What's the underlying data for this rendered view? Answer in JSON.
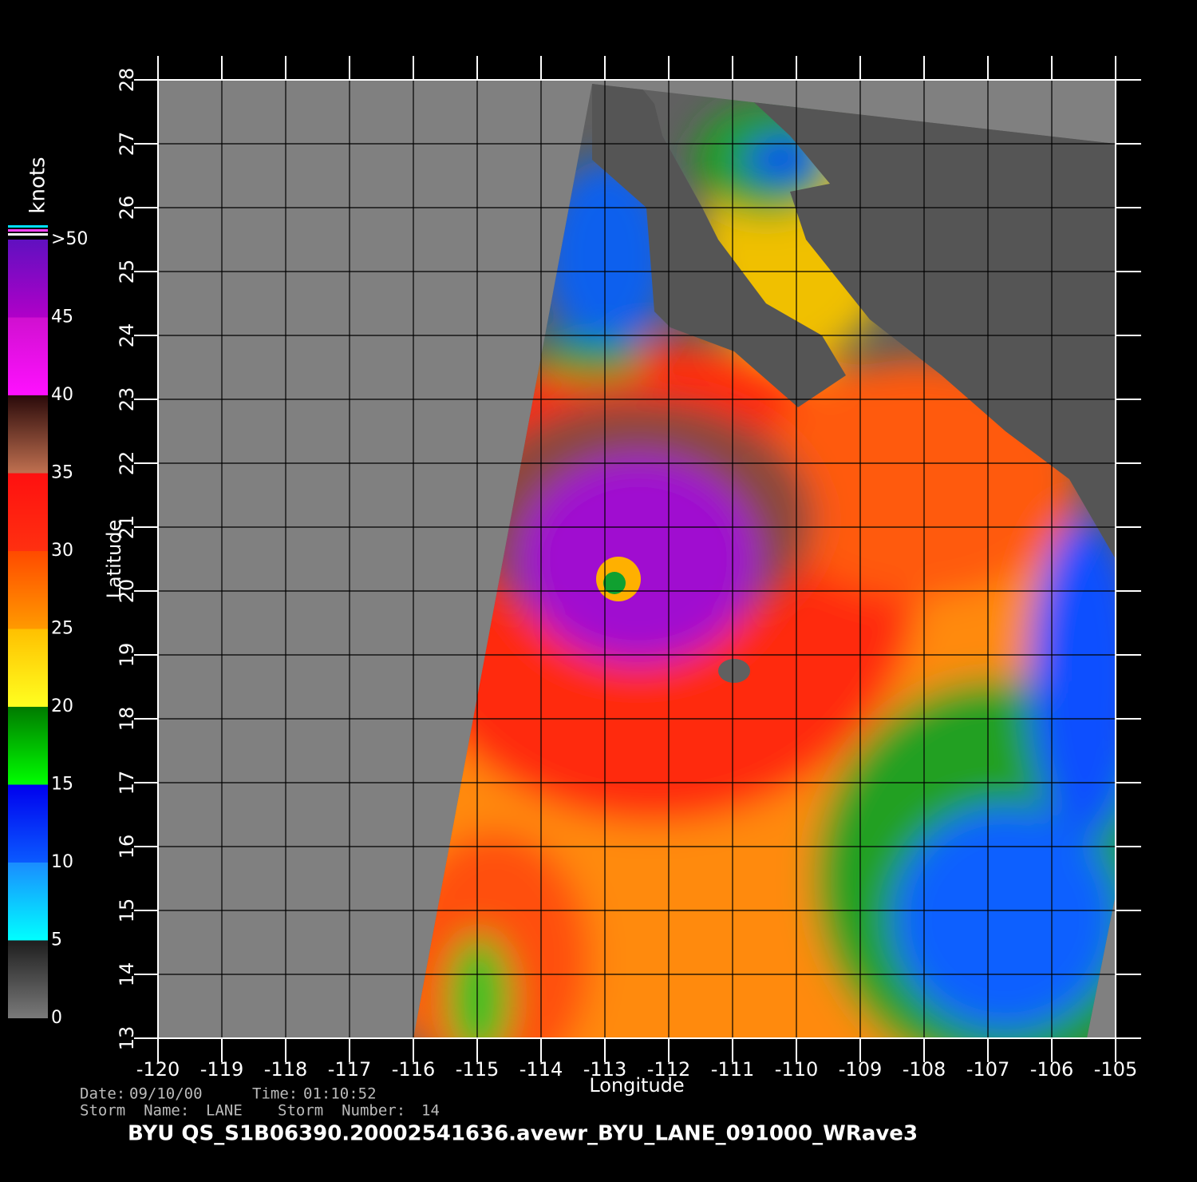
{
  "map": {
    "xlabel": "Longitude",
    "ylabel": "Latitude",
    "xlim": [
      -120,
      -105
    ],
    "ylim": [
      13,
      28
    ],
    "xticks": [
      -120,
      -119,
      -118,
      -117,
      -116,
      -115,
      -114,
      -113,
      -112,
      -111,
      -110,
      -109,
      -108,
      -107,
      -106,
      -105
    ],
    "yticks": [
      13,
      14,
      15,
      16,
      17,
      18,
      19,
      20,
      21,
      22,
      23,
      24,
      25,
      26,
      27,
      28
    ],
    "grid": true
  },
  "colorbar": {
    "title": "knots",
    "ticks": [
      0,
      5,
      10,
      15,
      20,
      25,
      30,
      35,
      40,
      45,
      {
        "value": 50,
        "label": ">50"
      }
    ],
    "colors": [
      [
        "#7a7a7a",
        "#1e1e1e"
      ],
      [
        "#00ffff",
        "#1a8cff"
      ],
      [
        "#0a5aff",
        "#0000ee"
      ],
      [
        "#00ff00",
        "#007a00"
      ],
      [
        "#ffff20",
        "#ffc000"
      ],
      [
        "#ff9a00",
        "#ff4a00"
      ],
      [
        "#ff3010",
        "#ff1010"
      ],
      [
        "#c07050",
        "#2a0a0a"
      ],
      [
        "#ff10ff",
        "#d010d0"
      ],
      [
        "#b000c8",
        "#6010c0"
      ]
    ]
  },
  "info": {
    "date_label": "Date:",
    "date": "09/10/00",
    "time_label": "Time:",
    "time": "01:10:52",
    "storm_name_label": "Storm  Name:",
    "storm_name": "LANE",
    "storm_number_label": "Storm  Number:",
    "storm_number": "14"
  },
  "title": "BYU  QS_S1B06390.20002541636.avewr_BYU_LANE_091000_WRave3"
}
